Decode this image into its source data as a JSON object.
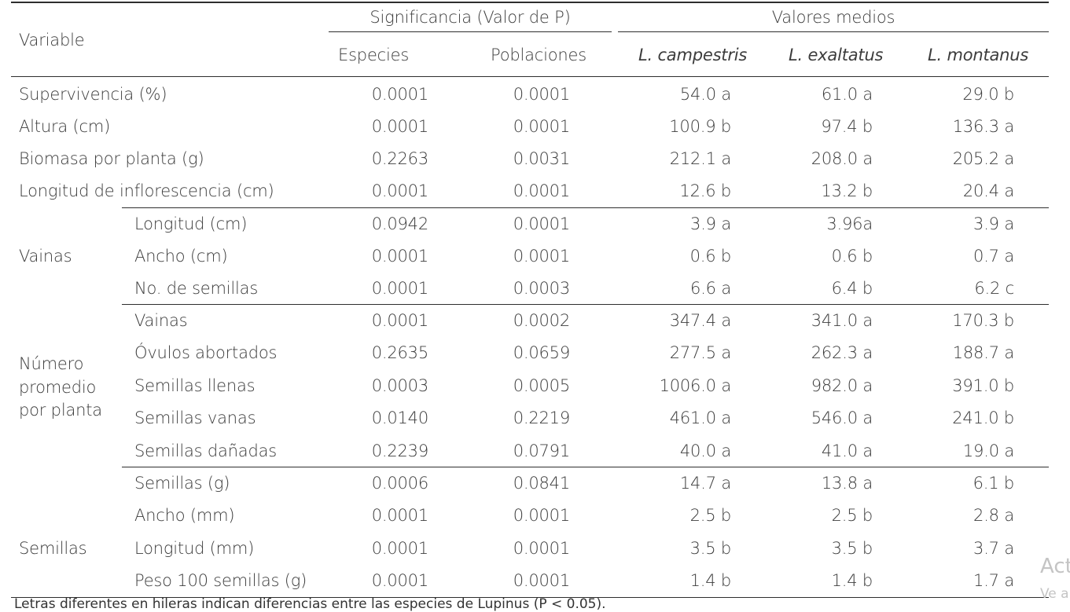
{
  "header": {
    "variable": "Variable",
    "significance": "Significancia (Valor de P)",
    "means": "Valores medios",
    "especies": "Especies",
    "poblaciones": "Poblaciones",
    "campestris": "L. campestris",
    "exaltatus": "L. exaltatus",
    "montanus": "L. montanus"
  },
  "rows": [
    {
      "group": "",
      "variable": "Supervivencia (%)",
      "especies": "0.0001",
      "poblaciones": "0.0001",
      "campestris": "54.0 a",
      "exaltatus": "61.0 a",
      "montanus": "29.0 b"
    },
    {
      "group": "",
      "variable": "Altura (cm)",
      "especies": "0.0001",
      "poblaciones": "0.0001",
      "campestris": "100.9 b",
      "exaltatus": "97.4 b",
      "montanus": "136.3 a"
    },
    {
      "group": "",
      "variable": "Biomasa por planta (g)",
      "especies": "0.2263",
      "poblaciones": "0.0031",
      "campestris": "212.1 a",
      "exaltatus": "208.0 a",
      "montanus": "205.2 a"
    },
    {
      "group": "",
      "variable": "Longitud de inflorescencia (cm)",
      "especies": "0.0001",
      "poblaciones": "0.0001",
      "campestris": "12.6 b",
      "exaltatus": "13.2 b",
      "montanus": "20.4 a"
    },
    {
      "group": "Vainas",
      "variable": "Longitud (cm)",
      "especies": "0.0942",
      "poblaciones": "0.0001",
      "campestris": "3.9 a",
      "exaltatus": "3.96a",
      "montanus": "3.9 a"
    },
    {
      "group": "Vainas",
      "variable": "Ancho (cm)",
      "especies": "0.0001",
      "poblaciones": "0.0001",
      "campestris": "0.6 b",
      "exaltatus": "0.6 b",
      "montanus": "0.7 a"
    },
    {
      "group": "Vainas",
      "variable": "No. de semillas",
      "especies": "0.0001",
      "poblaciones": "0.0003",
      "campestris": "6.6 a",
      "exaltatus": "6.4 b",
      "montanus": "6.2 c"
    },
    {
      "group": "Número promedio por planta",
      "variable": "Vainas",
      "especies": "0.0001",
      "poblaciones": "0.0002",
      "campestris": "347.4 a",
      "exaltatus": "341.0 a",
      "montanus": "170.3 b"
    },
    {
      "group": "Número promedio por planta",
      "variable": "Óvulos abortados",
      "especies": "0.2635",
      "poblaciones": "0.0659",
      "campestris": "277.5 a",
      "exaltatus": "262.3 a",
      "montanus": "188.7 a"
    },
    {
      "group": "Número promedio por planta",
      "variable": "Semillas llenas",
      "especies": "0.0003",
      "poblaciones": "0.0005",
      "campestris": "1006.0 a",
      "exaltatus": "982.0 a",
      "montanus": "391.0 b"
    },
    {
      "group": "Número promedio por planta",
      "variable": "Semillas vanas",
      "especies": "0.0140",
      "poblaciones": "0.2219",
      "campestris": "461.0 a",
      "exaltatus": "546.0 a",
      "montanus": "241.0 b"
    },
    {
      "group": "Número promedio por planta",
      "variable": "Semillas dañadas",
      "especies": "0.2239",
      "poblaciones": "0.0791",
      "campestris": "40.0 a",
      "exaltatus": "41.0 a",
      "montanus": "19.0 a"
    },
    {
      "group": "Semillas",
      "variable": "Semillas (g)",
      "especies": "0.0006",
      "poblaciones": "0.0841",
      "campestris": "14.7 a",
      "exaltatus": "13.8 a",
      "montanus": "6.1 b"
    },
    {
      "group": "Semillas",
      "variable": "Ancho (mm)",
      "especies": "0.0001",
      "poblaciones": "0.0001",
      "campestris": "2.5 b",
      "exaltatus": "2.5 b",
      "montanus": "2.8 a"
    },
    {
      "group": "Semillas",
      "variable": "Longitud (mm)",
      "especies": "0.0001",
      "poblaciones": "0.0001",
      "campestris": "3.5 b",
      "exaltatus": "3.5 b",
      "montanus": "3.7 a"
    },
    {
      "group": "Semillas",
      "variable": "Peso 100 semillas (g)",
      "especies": "0.0001",
      "poblaciones": "0.0001",
      "campestris": "1.4 b",
      "exaltatus": "1.4 b",
      "montanus": "1.7 a"
    }
  ],
  "groups": {
    "vainas": "Vainas",
    "numero_line1": "Número",
    "numero_line2": "promedio",
    "numero_line3": "por planta",
    "semillas": "Semillas"
  },
  "footnote": "Letras diferentes en hileras indican diferencias entre las especies de Lupinus (P < 0.05).",
  "watermark": {
    "line1": "Act",
    "line2": "Ve a"
  }
}
